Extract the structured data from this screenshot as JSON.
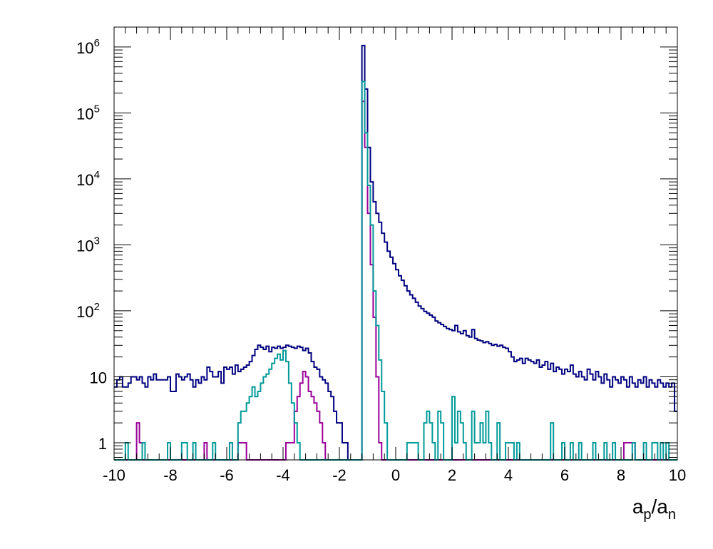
{
  "chart_data": {
    "type": "line",
    "subtype": "step-histogram",
    "xlabel": "a_p/a_n",
    "xlabel_base": "a",
    "xlabel_sub1": "p",
    "xlabel_sep": "/a",
    "xlabel_sub2": "n",
    "ylabel": "",
    "title": "",
    "xlim": [
      -10,
      10
    ],
    "ylim": [
      0.55,
      2000000
    ],
    "yscale": "log",
    "grid": false,
    "legend": "none",
    "x_ticks": [
      "-10",
      "-8",
      "-6",
      "-4",
      "-2",
      "0",
      "2",
      "4",
      "6",
      "8",
      "10"
    ],
    "y_ticks": [
      {
        "value": 1,
        "label": "1",
        "sup": ""
      },
      {
        "value": 10,
        "label": "10",
        "sup": ""
      },
      {
        "value": 100,
        "label": "10",
        "sup": "2"
      },
      {
        "value": 1000,
        "label": "10",
        "sup": "3"
      },
      {
        "value": 10000,
        "label": "10",
        "sup": "4"
      },
      {
        "value": 100000,
        "label": "10",
        "sup": "5"
      },
      {
        "value": 1000000,
        "label": "10",
        "sup": "6"
      }
    ],
    "bin_width": 0.1,
    "series": [
      {
        "color": "#000080",
        "bins": [
          [
            -10.0,
            7
          ],
          [
            -9.9,
            9
          ],
          [
            -9.8,
            10
          ],
          [
            -9.7,
            7
          ],
          [
            -9.6,
            7
          ],
          [
            -9.5,
            8
          ],
          [
            -9.4,
            10
          ],
          [
            -9.3,
            10
          ],
          [
            -9.2,
            9
          ],
          [
            -9.1,
            10
          ],
          [
            -9.0,
            8
          ],
          [
            -8.9,
            7
          ],
          [
            -8.8,
            10
          ],
          [
            -8.7,
            9
          ],
          [
            -8.6,
            11
          ],
          [
            -8.5,
            9
          ],
          [
            -8.4,
            9
          ],
          [
            -8.3,
            9
          ],
          [
            -8.2,
            9
          ],
          [
            -8.1,
            10
          ],
          [
            -8.0,
            6
          ],
          [
            -7.9,
            6
          ],
          [
            -7.8,
            11
          ],
          [
            -7.7,
            10
          ],
          [
            -7.6,
            9
          ],
          [
            -7.5,
            10
          ],
          [
            -7.4,
            11
          ],
          [
            -7.3,
            9
          ],
          [
            -7.2,
            7
          ],
          [
            -7.1,
            9
          ],
          [
            -7.0,
            8
          ],
          [
            -6.9,
            10
          ],
          [
            -6.8,
            9
          ],
          [
            -6.7,
            14
          ],
          [
            -6.6,
            12
          ],
          [
            -6.5,
            10
          ],
          [
            -6.4,
            10
          ],
          [
            -6.3,
            12
          ],
          [
            -6.2,
            8
          ],
          [
            -6.1,
            14
          ],
          [
            -6.0,
            13
          ],
          [
            -5.9,
            14
          ],
          [
            -5.8,
            11
          ],
          [
            -5.7,
            15
          ],
          [
            -5.6,
            12
          ],
          [
            -5.5,
            13
          ],
          [
            -5.4,
            14
          ],
          [
            -5.3,
            15
          ],
          [
            -5.2,
            17
          ],
          [
            -5.1,
            21
          ],
          [
            -5.0,
            26
          ],
          [
            -4.9,
            30
          ],
          [
            -4.8,
            28
          ],
          [
            -4.7,
            26
          ],
          [
            -4.6,
            29
          ],
          [
            -4.5,
            24
          ],
          [
            -4.4,
            28
          ],
          [
            -4.3,
            27
          ],
          [
            -4.2,
            29
          ],
          [
            -4.1,
            27
          ],
          [
            -4.0,
            28
          ],
          [
            -3.9,
            30
          ],
          [
            -3.8,
            29
          ],
          [
            -3.7,
            28
          ],
          [
            -3.6,
            27
          ],
          [
            -3.5,
            29
          ],
          [
            -3.4,
            28
          ],
          [
            -3.3,
            25
          ],
          [
            -3.2,
            27
          ],
          [
            -3.1,
            23
          ],
          [
            -3.0,
            17
          ],
          [
            -2.9,
            14
          ],
          [
            -2.8,
            13
          ],
          [
            -2.7,
            10
          ],
          [
            -2.6,
            9
          ],
          [
            -2.5,
            8
          ],
          [
            -2.4,
            6
          ],
          [
            -2.3,
            5
          ],
          [
            -2.2,
            3
          ],
          [
            -2.1,
            2
          ],
          [
            -2.0,
            2
          ],
          [
            -1.9,
            1
          ],
          [
            -1.8,
            1
          ],
          [
            -1.7,
            0.55
          ],
          [
            -1.6,
            0.55
          ],
          [
            -1.5,
            0.55
          ],
          [
            -1.4,
            0.55
          ],
          [
            -1.3,
            0.55
          ],
          [
            -1.2,
            1050000
          ],
          [
            -1.1,
            230000
          ],
          [
            -1.0,
            30000
          ],
          [
            -0.9,
            9000
          ],
          [
            -0.8,
            4500
          ],
          [
            -0.7,
            3000
          ],
          [
            -0.6,
            2200
          ],
          [
            -0.5,
            1500
          ],
          [
            -0.4,
            1100
          ],
          [
            -0.3,
            800
          ],
          [
            -0.2,
            650
          ],
          [
            -0.1,
            520
          ],
          [
            0.0,
            420
          ],
          [
            0.1,
            340
          ],
          [
            0.2,
            290
          ],
          [
            0.3,
            240
          ],
          [
            0.4,
            200
          ],
          [
            0.5,
            175
          ],
          [
            0.6,
            155
          ],
          [
            0.7,
            135
          ],
          [
            0.8,
            118
          ],
          [
            0.9,
            108
          ],
          [
            1.0,
            98
          ],
          [
            1.1,
            92
          ],
          [
            1.2,
            86
          ],
          [
            1.3,
            80
          ],
          [
            1.4,
            70
          ],
          [
            1.5,
            66
          ],
          [
            1.6,
            62
          ],
          [
            1.7,
            58
          ],
          [
            1.8,
            54
          ],
          [
            1.9,
            52
          ],
          [
            2.0,
            50
          ],
          [
            2.1,
            60
          ],
          [
            2.2,
            48
          ],
          [
            2.3,
            45
          ],
          [
            2.4,
            50
          ],
          [
            2.5,
            42
          ],
          [
            2.6,
            40
          ],
          [
            2.7,
            52
          ],
          [
            2.8,
            38
          ],
          [
            2.9,
            36
          ],
          [
            3.0,
            35
          ],
          [
            3.1,
            33
          ],
          [
            3.2,
            34
          ],
          [
            3.3,
            32
          ],
          [
            3.4,
            30
          ],
          [
            3.5,
            31
          ],
          [
            3.6,
            29
          ],
          [
            3.7,
            30
          ],
          [
            3.8,
            28
          ],
          [
            3.9,
            27
          ],
          [
            4.0,
            24
          ],
          [
            4.1,
            20
          ],
          [
            4.2,
            17
          ],
          [
            4.3,
            18
          ],
          [
            4.4,
            19
          ],
          [
            4.5,
            16
          ],
          [
            4.6,
            19
          ],
          [
            4.7,
            18
          ],
          [
            4.8,
            17
          ],
          [
            4.9,
            16
          ],
          [
            5.0,
            18
          ],
          [
            5.1,
            14
          ],
          [
            5.2,
            15
          ],
          [
            5.3,
            17
          ],
          [
            5.4,
            13
          ],
          [
            5.5,
            16
          ],
          [
            5.6,
            12
          ],
          [
            5.7,
            14
          ],
          [
            5.8,
            13
          ],
          [
            5.9,
            11
          ],
          [
            6.0,
            13
          ],
          [
            6.1,
            12
          ],
          [
            6.2,
            15
          ],
          [
            6.3,
            11
          ],
          [
            6.4,
            10
          ],
          [
            6.5,
            12
          ],
          [
            6.6,
            10
          ],
          [
            6.7,
            9
          ],
          [
            6.8,
            13
          ],
          [
            6.9,
            11
          ],
          [
            7.0,
            9
          ],
          [
            7.1,
            12
          ],
          [
            7.2,
            10
          ],
          [
            7.3,
            8
          ],
          [
            7.4,
            11
          ],
          [
            7.5,
            9
          ],
          [
            7.6,
            7
          ],
          [
            7.7,
            10
          ],
          [
            7.8,
            9
          ],
          [
            7.9,
            8
          ],
          [
            8.0,
            10
          ],
          [
            8.1,
            9
          ],
          [
            8.2,
            7
          ],
          [
            8.3,
            10
          ],
          [
            8.4,
            8
          ],
          [
            8.5,
            7
          ],
          [
            8.6,
            9
          ],
          [
            8.7,
            8
          ],
          [
            8.8,
            10
          ],
          [
            8.9,
            7
          ],
          [
            9.0,
            9
          ],
          [
            9.1,
            8
          ],
          [
            9.2,
            7
          ],
          [
            9.3,
            9
          ],
          [
            9.4,
            8
          ],
          [
            9.5,
            7
          ],
          [
            9.6,
            8
          ],
          [
            9.7,
            7
          ],
          [
            9.8,
            8
          ],
          [
            9.9,
            3
          ]
        ]
      },
      {
        "color": "#990099",
        "bins": [
          [
            -9.2,
            2
          ],
          [
            -9.1,
            1
          ],
          [
            -6.8,
            1
          ],
          [
            -5.6,
            1
          ],
          [
            -5.5,
            1
          ],
          [
            -5.4,
            1
          ],
          [
            -3.9,
            1
          ],
          [
            -3.8,
            1
          ],
          [
            -3.7,
            1
          ],
          [
            -3.6,
            3
          ],
          [
            -3.5,
            5
          ],
          [
            -3.4,
            8
          ],
          [
            -3.3,
            12
          ],
          [
            -3.2,
            10
          ],
          [
            -3.1,
            6
          ],
          [
            -3.0,
            5
          ],
          [
            -2.9,
            4
          ],
          [
            -2.8,
            3
          ],
          [
            -2.7,
            2
          ],
          [
            -2.6,
            1
          ],
          [
            -1.2,
            150000
          ],
          [
            -1.1,
            30000
          ],
          [
            -1.0,
            3000
          ],
          [
            -0.9,
            500
          ],
          [
            -0.8,
            80
          ],
          [
            -0.7,
            10
          ],
          [
            -0.6,
            1
          ],
          [
            8.1,
            1
          ],
          [
            8.2,
            1
          ],
          [
            8.3,
            1
          ],
          [
            8.4,
            1
          ]
        ]
      },
      {
        "color": "#009999",
        "bins": [
          [
            -9.6,
            1
          ],
          [
            -9.0,
            1
          ],
          [
            -8.1,
            1
          ],
          [
            -7.6,
            1
          ],
          [
            -7.5,
            1
          ],
          [
            -7.2,
            1
          ],
          [
            -6.5,
            1
          ],
          [
            -5.9,
            1
          ],
          [
            -5.6,
            2
          ],
          [
            -5.5,
            3
          ],
          [
            -5.4,
            3
          ],
          [
            -5.3,
            4
          ],
          [
            -5.2,
            5
          ],
          [
            -5.1,
            7
          ],
          [
            -5.0,
            5
          ],
          [
            -4.9,
            6
          ],
          [
            -4.8,
            8
          ],
          [
            -4.7,
            10
          ],
          [
            -4.6,
            11
          ],
          [
            -4.5,
            13
          ],
          [
            -4.4,
            16
          ],
          [
            -4.3,
            19
          ],
          [
            -4.2,
            22
          ],
          [
            -4.1,
            18
          ],
          [
            -4.0,
            25
          ],
          [
            -3.9,
            17
          ],
          [
            -3.8,
            8
          ],
          [
            -3.7,
            4
          ],
          [
            -3.6,
            2
          ],
          [
            -3.5,
            1
          ],
          [
            -1.2,
            300000
          ],
          [
            -1.1,
            50000
          ],
          [
            -1.0,
            8000
          ],
          [
            -0.9,
            2000
          ],
          [
            -0.8,
            200
          ],
          [
            -0.7,
            60
          ],
          [
            -0.6,
            18
          ],
          [
            -0.5,
            6
          ],
          [
            -0.4,
            2
          ],
          [
            0.4,
            1
          ],
          [
            0.5,
            1
          ],
          [
            0.6,
            1
          ],
          [
            0.7,
            1
          ],
          [
            1.0,
            2
          ],
          [
            1.1,
            3
          ],
          [
            1.2,
            2
          ],
          [
            1.3,
            1
          ],
          [
            1.5,
            3
          ],
          [
            1.6,
            2
          ],
          [
            2.0,
            5
          ],
          [
            2.1,
            1
          ],
          [
            2.2,
            3
          ],
          [
            2.3,
            2
          ],
          [
            2.4,
            1
          ],
          [
            2.7,
            3
          ],
          [
            2.8,
            1
          ],
          [
            2.9,
            1
          ],
          [
            3.0,
            2
          ],
          [
            3.1,
            1
          ],
          [
            3.2,
            3
          ],
          [
            3.3,
            1
          ],
          [
            3.6,
            2
          ],
          [
            3.9,
            1
          ],
          [
            4.0,
            1
          ],
          [
            4.1,
            1
          ],
          [
            4.3,
            1
          ],
          [
            5.5,
            2
          ],
          [
            5.9,
            1
          ],
          [
            6.2,
            1
          ],
          [
            6.5,
            1
          ],
          [
            7.0,
            1
          ],
          [
            7.4,
            1
          ],
          [
            7.7,
            1
          ],
          [
            8.4,
            1
          ],
          [
            8.8,
            1
          ],
          [
            9.1,
            1
          ],
          [
            9.2,
            1
          ],
          [
            9.4,
            1
          ],
          [
            9.6,
            1
          ]
        ]
      }
    ]
  }
}
